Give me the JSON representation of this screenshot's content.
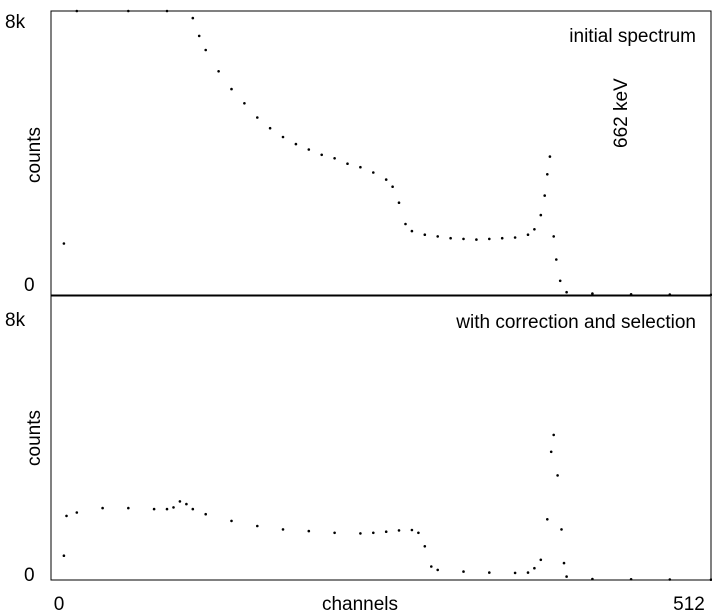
{
  "chart_data": [
    {
      "type": "scatter",
      "panel": "top",
      "annotation": "initial spectrum",
      "peak_label": "662 keV",
      "ylabel": "counts",
      "y_tick_labels": [
        "8k",
        "0"
      ],
      "ylim": [
        0,
        8000
      ],
      "xlim": [
        0,
        512
      ],
      "color": "#000000",
      "series": [
        {
          "points": [
            [
              10,
              1450
            ],
            [
              20,
              8000
            ],
            [
              60,
              8000
            ],
            [
              90,
              8000
            ],
            [
              110,
              7800
            ],
            [
              115,
              7300
            ],
            [
              120,
              6900
            ],
            [
              130,
              6300
            ],
            [
              140,
              5800
            ],
            [
              150,
              5400
            ],
            [
              160,
              5000
            ],
            [
              170,
              4700
            ],
            [
              180,
              4450
            ],
            [
              190,
              4250
            ],
            [
              200,
              4100
            ],
            [
              210,
              3950
            ],
            [
              220,
              3850
            ],
            [
              230,
              3700
            ],
            [
              240,
              3600
            ],
            [
              250,
              3450
            ],
            [
              260,
              3250
            ],
            [
              265,
              3050
            ],
            [
              270,
              2600
            ],
            [
              275,
              2000
            ],
            [
              280,
              1800
            ],
            [
              290,
              1700
            ],
            [
              300,
              1650
            ],
            [
              310,
              1600
            ],
            [
              320,
              1580
            ],
            [
              330,
              1560
            ],
            [
              340,
              1580
            ],
            [
              350,
              1600
            ],
            [
              360,
              1620
            ],
            [
              370,
              1700
            ],
            [
              375,
              1850
            ],
            [
              380,
              2250
            ],
            [
              383,
              2800
            ],
            [
              385,
              3400
            ],
            [
              387,
              3900
            ],
            [
              390,
              1650
            ],
            [
              392,
              1000
            ],
            [
              395,
              400
            ],
            [
              400,
              80
            ],
            [
              420,
              40
            ],
            [
              450,
              20
            ],
            [
              480,
              10
            ],
            [
              512,
              5
            ]
          ]
        }
      ]
    },
    {
      "type": "scatter",
      "panel": "bottom",
      "annotation": "with correction and selection",
      "ylabel": "counts",
      "y_tick_labels": [
        "8k",
        "0"
      ],
      "xlabel": "channels",
      "x_tick_labels": [
        "0",
        "512"
      ],
      "ylim": [
        0,
        8000
      ],
      "xlim": [
        0,
        512
      ],
      "color": "#000000",
      "series": [
        {
          "points": [
            [
              10,
              720
            ],
            [
              12,
              1900
            ],
            [
              20,
              2000
            ],
            [
              40,
              2130
            ],
            [
              60,
              2130
            ],
            [
              80,
              2100
            ],
            [
              90,
              2100
            ],
            [
              95,
              2150
            ],
            [
              100,
              2330
            ],
            [
              105,
              2250
            ],
            [
              110,
              2100
            ],
            [
              120,
              1950
            ],
            [
              140,
              1750
            ],
            [
              160,
              1600
            ],
            [
              180,
              1500
            ],
            [
              200,
              1450
            ],
            [
              220,
              1400
            ],
            [
              240,
              1380
            ],
            [
              250,
              1400
            ],
            [
              260,
              1430
            ],
            [
              270,
              1470
            ],
            [
              280,
              1480
            ],
            [
              285,
              1400
            ],
            [
              290,
              1000
            ],
            [
              295,
              400
            ],
            [
              300,
              300
            ],
            [
              320,
              250
            ],
            [
              340,
              220
            ],
            [
              360,
              210
            ],
            [
              370,
              220
            ],
            [
              375,
              350
            ],
            [
              380,
              600
            ],
            [
              385,
              1800
            ],
            [
              388,
              3800
            ],
            [
              390,
              4300
            ],
            [
              393,
              3100
            ],
            [
              396,
              1500
            ],
            [
              398,
              500
            ],
            [
              400,
              100
            ],
            [
              420,
              30
            ],
            [
              450,
              20
            ],
            [
              480,
              15
            ],
            [
              512,
              10
            ]
          ]
        }
      ]
    }
  ]
}
